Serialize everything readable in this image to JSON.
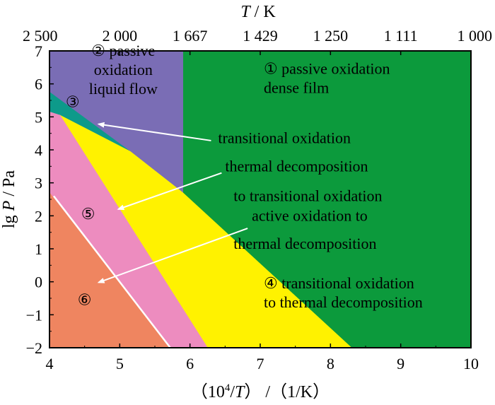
{
  "chart_data": {
    "type": "area",
    "x_axis": {
      "label_parts": [
        "（10",
        "4",
        "/",
        "T",
        "）  /（1/K）"
      ],
      "range": [
        4,
        10
      ],
      "ticks": [
        {
          "value": 4,
          "label": "4"
        },
        {
          "value": 5,
          "label": "5"
        },
        {
          "value": 6,
          "label": "6"
        },
        {
          "value": 7,
          "label": "7"
        },
        {
          "value": 8,
          "label": "8"
        },
        {
          "value": 9,
          "label": "9"
        },
        {
          "value": 10,
          "label": "10"
        }
      ]
    },
    "y_axis": {
      "label_parts": [
        "lg ",
        "P",
        " / Pa"
      ],
      "range": [
        -2,
        7
      ],
      "ticks": [
        {
          "value": 7,
          "label": "7"
        },
        {
          "value": 6,
          "label": "6"
        },
        {
          "value": 5,
          "label": "5"
        },
        {
          "value": 4,
          "label": "4"
        },
        {
          "value": 3,
          "label": "3"
        },
        {
          "value": 2,
          "label": "2"
        },
        {
          "value": 1,
          "label": "1"
        },
        {
          "value": 0,
          "label": "0"
        },
        {
          "value": -1,
          "label": "−1"
        },
        {
          "value": -2,
          "label": "−2"
        }
      ]
    },
    "top_axis": {
      "label_parts": [
        "T",
        " / K"
      ],
      "ticks": [
        {
          "value": 4.0,
          "label": "2 500"
        },
        {
          "value": 5.0,
          "label": "2 000"
        },
        {
          "value": 6.0,
          "label": "1 667"
        },
        {
          "value": 7.0,
          "label": "1 429"
        },
        {
          "value": 8.0,
          "label": "1 250"
        },
        {
          "value": 9.0,
          "label": "1 111"
        },
        {
          "value": 10.0,
          "label": "1 000"
        }
      ]
    },
    "regions": [
      {
        "id": "passive-oxidation-dense-film",
        "color": "#0c9a3c",
        "polygon": [
          [
            5.9,
            7
          ],
          [
            10,
            7
          ],
          [
            10,
            -2
          ],
          [
            8.3,
            -2
          ],
          [
            5.9,
            2.7
          ]
        ]
      },
      {
        "id": "passive-oxidation-liquid-flow",
        "color": "#7a6db5",
        "polygon": [
          [
            4,
            7
          ],
          [
            5.9,
            7
          ],
          [
            5.9,
            2.7
          ],
          [
            5.15,
            3.95
          ],
          [
            4,
            5.75
          ]
        ]
      },
      {
        "id": "transitional-oxidation",
        "color": "#0d9a8a",
        "polygon": [
          [
            4,
            5.75
          ],
          [
            5.15,
            3.95
          ],
          [
            4.15,
            5.05
          ],
          [
            4,
            5.15
          ]
        ]
      },
      {
        "id": "transitional-oxidation-to-thermal-decomposition",
        "color": "#fff200",
        "polygon": [
          [
            4.15,
            5.05
          ],
          [
            5.15,
            3.95
          ],
          [
            5.9,
            2.7
          ],
          [
            8.3,
            -2
          ],
          [
            6.25,
            -2
          ]
        ]
      },
      {
        "id": "thermal-decomposition-to-transitional-oxidation",
        "color": "#ed8cbf",
        "polygon": [
          [
            4,
            5.15
          ],
          [
            4.15,
            5.05
          ],
          [
            6.25,
            -2
          ],
          [
            5.72,
            -2
          ],
          [
            4,
            2.7
          ]
        ]
      },
      {
        "id": "active-oxidation-to-thermal-decomposition",
        "color": "#ef8560",
        "polygon": [
          [
            4,
            2.7
          ],
          [
            5.72,
            -2
          ],
          [
            4,
            -2
          ]
        ]
      }
    ],
    "boundary_line": {
      "color": "#ffffff",
      "points": [
        [
          4.06,
          2.6
        ],
        [
          5.72,
          -2
        ]
      ]
    },
    "region_labels": [
      {
        "lines": [
          "① passive oxidation",
          "dense film"
        ],
        "anchor": "start",
        "x": 7.05,
        "y": 6.3
      },
      {
        "lines": [
          "② passive",
          "oxidation",
          "liquid flow"
        ],
        "anchor": "middle",
        "x": 5.05,
        "y": 6.85
      },
      {
        "lines": [
          "④ transitional oxidation",
          "to thermal decomposition"
        ],
        "anchor": "start",
        "x": 7.05,
        "y": -0.2
      }
    ],
    "circled_markers": [
      {
        "text": "③",
        "x": 4.33,
        "y": 5.3
      },
      {
        "text": "⑤",
        "x": 4.55,
        "y": 1.9
      },
      {
        "text": "⑥",
        "x": 4.5,
        "y": -0.7
      }
    ],
    "annotations": [
      {
        "text": "transitional oxidation",
        "x": 6.4,
        "y": 4.2,
        "anchor": "start",
        "arrow_from": [
          6.3,
          4.28
        ],
        "arrow_to": [
          4.7,
          4.78
        ]
      },
      {
        "text": "thermal decomposition",
        "x": 6.5,
        "y": 3.35,
        "anchor": "start",
        "arrow_from": [
          6.45,
          3.3
        ],
        "arrow_to": [
          4.98,
          2.2
        ]
      },
      {
        "text": "to transitional oxidation",
        "x": 6.62,
        "y": 2.45,
        "anchor": "start"
      },
      {
        "text": "active oxidation to",
        "x": 6.88,
        "y": 1.85,
        "anchor": "start",
        "arrow_from": [
          6.82,
          1.62
        ],
        "arrow_to": [
          4.7,
          -0.02
        ]
      },
      {
        "text": "thermal decomposition",
        "x": 6.62,
        "y": 1.0,
        "anchor": "start"
      }
    ],
    "colors": {
      "arrow": "#ffffff",
      "frame": "#000000"
    }
  }
}
